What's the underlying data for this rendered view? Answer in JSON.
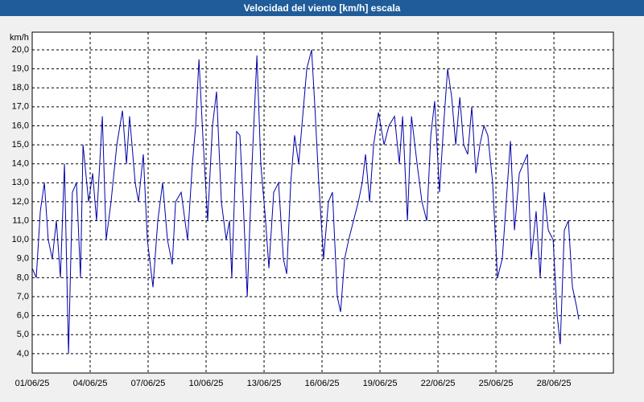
{
  "chart_data": {
    "type": "line",
    "title": "Velocidad del viento [km/h] escala",
    "y_label": "km/h",
    "color": "#0000a8",
    "grid": true,
    "xlim": [
      1,
      31.08
    ],
    "ylim": [
      2.98,
      20.93
    ],
    "xticks": [
      {
        "value": 1,
        "label": "01/06/25"
      },
      {
        "value": 4,
        "label": "04/06/25"
      },
      {
        "value": 7,
        "label": "07/06/25"
      },
      {
        "value": 10,
        "label": "10/06/25"
      },
      {
        "value": 13,
        "label": "13/06/25"
      },
      {
        "value": 16,
        "label": "16/06/25"
      },
      {
        "value": 19,
        "label": "19/06/25"
      },
      {
        "value": 22,
        "label": "22/06/25"
      },
      {
        "value": 25,
        "label": "25/06/25"
      },
      {
        "value": 28,
        "label": "28/06/25"
      }
    ],
    "yticks": [
      {
        "value": 4,
        "label": "4,0"
      },
      {
        "value": 5,
        "label": "5,0"
      },
      {
        "value": 6,
        "label": "6,0"
      },
      {
        "value": 7,
        "label": "7,0"
      },
      {
        "value": 8,
        "label": "8,0"
      },
      {
        "value": 9,
        "label": "9,0"
      },
      {
        "value": 10,
        "label": "10,0"
      },
      {
        "value": 11,
        "label": "11,0"
      },
      {
        "value": 12,
        "label": "12,0"
      },
      {
        "value": 13,
        "label": "13,0"
      },
      {
        "value": 14,
        "label": "14,0"
      },
      {
        "value": 15,
        "label": "15,0"
      },
      {
        "value": 16,
        "label": "16,0"
      },
      {
        "value": 17,
        "label": "17,0"
      },
      {
        "value": 18,
        "label": "18,0"
      },
      {
        "value": 19,
        "label": "19,0"
      },
      {
        "value": 20,
        "label": "20,0"
      }
    ],
    "x": [
      1.0,
      1.21,
      1.42,
      1.63,
      1.83,
      2.04,
      2.25,
      2.46,
      2.67,
      2.88,
      3.08,
      3.29,
      3.5,
      3.63,
      3.92,
      4.13,
      4.33,
      4.63,
      4.83,
      5.08,
      5.38,
      5.67,
      5.88,
      6.04,
      6.33,
      6.5,
      6.75,
      6.96,
      7.25,
      7.5,
      7.75,
      8.0,
      8.25,
      8.42,
      8.71,
      9.04,
      9.29,
      9.46,
      9.63,
      9.83,
      10.08,
      10.33,
      10.54,
      10.79,
      11.04,
      11.21,
      11.33,
      11.58,
      11.75,
      11.92,
      12.13,
      12.38,
      12.63,
      12.83,
      13.08,
      13.25,
      13.5,
      13.75,
      14.0,
      14.17,
      14.38,
      14.58,
      14.79,
      15.0,
      15.21,
      15.46,
      15.63,
      15.83,
      16.08,
      16.33,
      16.54,
      16.79,
      16.96,
      17.17,
      17.38,
      17.63,
      17.88,
      18.08,
      18.25,
      18.46,
      18.67,
      18.92,
      19.21,
      19.46,
      19.75,
      20.0,
      20.17,
      20.42,
      20.63,
      20.92,
      21.17,
      21.42,
      21.63,
      21.83,
      22.08,
      22.29,
      22.5,
      22.71,
      22.92,
      23.13,
      23.33,
      23.54,
      23.75,
      23.96,
      24.17,
      24.38,
      24.58,
      24.83,
      25.08,
      25.33,
      25.5,
      25.75,
      25.96,
      26.21,
      26.42,
      26.63,
      26.83,
      27.08,
      27.29,
      27.5,
      27.71,
      27.96,
      28.17,
      28.33,
      28.54,
      28.75,
      28.96,
      29.17,
      29.29
    ],
    "values": [
      8.5,
      8.0,
      11.5,
      13.0,
      10.0,
      9.0,
      11.0,
      8.0,
      14.0,
      4.0,
      12.5,
      13.0,
      8.0,
      15.0,
      12.0,
      13.5,
      11.0,
      16.5,
      10.0,
      12.0,
      15.0,
      16.8,
      14.0,
      16.5,
      13.0,
      12.0,
      14.5,
      10.0,
      7.5,
      11.0,
      13.0,
      10.0,
      8.7,
      12.0,
      12.5,
      10.0,
      14.0,
      16.0,
      19.5,
      15.5,
      11.0,
      16.0,
      17.8,
      12.0,
      10.0,
      11.0,
      8.0,
      15.7,
      15.5,
      12.0,
      7.0,
      14.0,
      19.7,
      14.0,
      11.0,
      8.5,
      12.5,
      13.0,
      9.0,
      8.2,
      13.0,
      15.5,
      14.0,
      16.5,
      19.0,
      20.0,
      17.0,
      13.0,
      9.0,
      12.0,
      12.5,
      7.0,
      6.2,
      9.0,
      10.0,
      11.0,
      12.0,
      13.0,
      14.5,
      12.0,
      15.0,
      16.7,
      15.0,
      16.0,
      16.5,
      14.0,
      16.5,
      11.0,
      16.5,
      14.0,
      12.0,
      11.0,
      15.5,
      17.3,
      12.5,
      16.0,
      19.0,
      17.5,
      15.0,
      17.5,
      15.0,
      14.5,
      17.0,
      13.5,
      15.0,
      16.0,
      15.5,
      13.0,
      8.0,
      9.0,
      11.5,
      15.2,
      10.5,
      13.5,
      14.0,
      14.5,
      9.0,
      11.5,
      8.0,
      12.5,
      10.5,
      10.0,
      6.0,
      4.5,
      10.5,
      11.0,
      7.5,
      6.5,
      5.8
    ]
  }
}
